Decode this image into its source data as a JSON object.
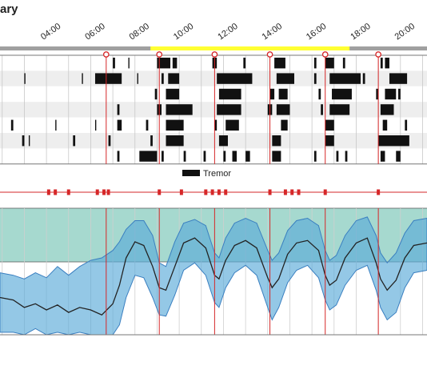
{
  "header": {
    "title_fragment": "ary"
  },
  "chart_data": [
    {
      "type": "event-timeline",
      "name_in_image": "",
      "x_ticks": [
        "04:00",
        "06:00",
        "08:00",
        "10:00",
        "12:00",
        "14:00",
        "16:00",
        "18:00",
        "20:00"
      ],
      "x_range_hours": [
        1.9,
        21.2
      ],
      "awake_bar": {
        "start": 8.7,
        "end": 17.7,
        "color": "#ffff33",
        "outside_color": "#a0a0a0"
      },
      "dose_markers": [
        6.7,
        9.1,
        11.6,
        14.1,
        16.6,
        19.0
      ],
      "row_count": 7,
      "legend": {
        "label": "Tremor",
        "color": "#111111"
      },
      "tremor_events": [
        [
          [
            7.0,
            7.1
          ],
          [
            7.7,
            7.75
          ],
          [
            9.0,
            9.6
          ],
          [
            9.7,
            9.9
          ],
          [
            11.5,
            11.7
          ],
          [
            12.9,
            13.0
          ],
          [
            14.3,
            14.8
          ],
          [
            16.1,
            16.2
          ],
          [
            16.6,
            17.0
          ],
          [
            17.4,
            17.5
          ],
          [
            19.1,
            19.2
          ],
          [
            19.3,
            19.5
          ]
        ],
        [
          [
            3.0,
            3.05
          ],
          [
            5.6,
            5.65
          ],
          [
            6.2,
            7.4
          ],
          [
            8.1,
            8.15
          ],
          [
            9.2,
            9.3
          ],
          [
            9.5,
            10.0
          ],
          [
            11.7,
            13.3
          ],
          [
            14.4,
            15.2
          ],
          [
            16.1,
            16.2
          ],
          [
            16.8,
            18.2
          ],
          [
            18.3,
            18.4
          ],
          [
            19.5,
            20.3
          ]
        ],
        [
          [
            8.9,
            9.0
          ],
          [
            9.4,
            10.0
          ],
          [
            11.8,
            12.8
          ],
          [
            14.1,
            14.3
          ],
          [
            14.5,
            14.9
          ],
          [
            16.3,
            16.4
          ],
          [
            16.9,
            17.8
          ],
          [
            18.9,
            19.0
          ],
          [
            19.3,
            19.8
          ],
          [
            19.9,
            20.0
          ]
        ],
        [
          [
            7.2,
            7.3
          ],
          [
            9.0,
            9.2
          ],
          [
            9.4,
            10.6
          ],
          [
            11.7,
            12.8
          ],
          [
            14.0,
            14.2
          ],
          [
            14.4,
            15.0
          ],
          [
            16.4,
            16.5
          ],
          [
            16.8,
            17.7
          ],
          [
            19.1,
            19.7
          ]
        ],
        [
          [
            2.4,
            2.5
          ],
          [
            4.4,
            4.45
          ],
          [
            6.2,
            6.25
          ],
          [
            7.2,
            7.4
          ],
          [
            8.5,
            8.6
          ],
          [
            9.4,
            10.2
          ],
          [
            11.6,
            11.7
          ],
          [
            12.1,
            12.7
          ],
          [
            14.6,
            14.9
          ],
          [
            16.6,
            17.0
          ],
          [
            19.2,
            19.4
          ],
          [
            20.2,
            20.3
          ]
        ],
        [
          [
            2.9,
            3.0
          ],
          [
            3.2,
            3.25
          ],
          [
            5.2,
            5.3
          ],
          [
            6.8,
            6.9
          ],
          [
            8.7,
            8.8
          ],
          [
            9.4,
            10.2
          ],
          [
            11.8,
            12.2
          ],
          [
            14.2,
            14.6
          ],
          [
            16.6,
            17.0
          ],
          [
            19.0,
            20.4
          ]
        ],
        [
          [
            7.2,
            7.3
          ],
          [
            8.2,
            9.0
          ],
          [
            9.2,
            9.3
          ],
          [
            10.2,
            10.3
          ],
          [
            11.1,
            11.2
          ],
          [
            12.0,
            12.1
          ],
          [
            12.4,
            12.6
          ],
          [
            13.0,
            13.2
          ],
          [
            14.2,
            14.6
          ],
          [
            16.1,
            16.2
          ],
          [
            17.1,
            17.2
          ],
          [
            17.5,
            17.6
          ],
          [
            19.1,
            19.3
          ],
          [
            19.8,
            20.0
          ]
        ]
      ]
    },
    {
      "type": "event-markers",
      "name_in_image": "",
      "marker_color": "#d62728",
      "events_hours": [
        4.1,
        4.4,
        5.0,
        6.3,
        6.6,
        6.8,
        9.1,
        10.1,
        11.2,
        11.5,
        11.8,
        12.1,
        14.1,
        14.8,
        15.1,
        15.4,
        16.6,
        19.0
      ]
    },
    {
      "type": "area",
      "name_in_image": "",
      "band_color": "#2ca58d",
      "spread_color": "#5aaad8",
      "line_color": "#222222",
      "target_band_pct": [
        0.0,
        1.0
      ],
      "x_hours": [
        1.9,
        2.5,
        3.0,
        3.5,
        4.0,
        4.5,
        5.0,
        5.5,
        6.0,
        6.5,
        7.0,
        7.3,
        7.6,
        8.0,
        8.4,
        8.8,
        9.1,
        9.4,
        9.8,
        10.2,
        10.7,
        11.2,
        11.6,
        11.8,
        12.1,
        12.5,
        13.0,
        13.5,
        14.0,
        14.2,
        14.5,
        14.9,
        15.3,
        15.8,
        16.3,
        16.6,
        16.8,
        17.1,
        17.5,
        18.0,
        18.5,
        18.9,
        19.1,
        19.4,
        19.8,
        20.2,
        20.6,
        21.2
      ],
      "median": [
        0.3,
        0.28,
        0.22,
        0.25,
        0.2,
        0.24,
        0.18,
        0.22,
        0.2,
        0.16,
        0.25,
        0.4,
        0.62,
        0.75,
        0.72,
        0.55,
        0.38,
        0.36,
        0.55,
        0.74,
        0.78,
        0.7,
        0.48,
        0.45,
        0.6,
        0.72,
        0.76,
        0.7,
        0.46,
        0.38,
        0.45,
        0.65,
        0.74,
        0.76,
        0.68,
        0.48,
        0.4,
        0.44,
        0.62,
        0.74,
        0.78,
        0.58,
        0.45,
        0.36,
        0.44,
        0.62,
        0.72,
        0.74
      ],
      "upper": [
        0.5,
        0.48,
        0.45,
        0.5,
        0.46,
        0.55,
        0.48,
        0.55,
        0.6,
        0.62,
        0.68,
        0.75,
        0.85,
        0.92,
        0.92,
        0.8,
        0.58,
        0.55,
        0.75,
        0.9,
        0.93,
        0.88,
        0.66,
        0.62,
        0.78,
        0.9,
        0.94,
        0.9,
        0.68,
        0.6,
        0.66,
        0.84,
        0.92,
        0.94,
        0.88,
        0.68,
        0.6,
        0.64,
        0.8,
        0.92,
        0.95,
        0.8,
        0.66,
        0.58,
        0.66,
        0.82,
        0.92,
        0.94
      ],
      "lower": [
        0.02,
        0.02,
        0.0,
        0.05,
        0.0,
        0.02,
        0.0,
        0.02,
        0.0,
        0.0,
        0.0,
        0.08,
        0.3,
        0.48,
        0.46,
        0.3,
        0.16,
        0.15,
        0.32,
        0.52,
        0.58,
        0.48,
        0.26,
        0.22,
        0.38,
        0.5,
        0.56,
        0.48,
        0.22,
        0.12,
        0.22,
        0.42,
        0.52,
        0.56,
        0.46,
        0.28,
        0.2,
        0.24,
        0.4,
        0.52,
        0.56,
        0.36,
        0.22,
        0.12,
        0.18,
        0.38,
        0.5,
        0.52
      ]
    }
  ]
}
